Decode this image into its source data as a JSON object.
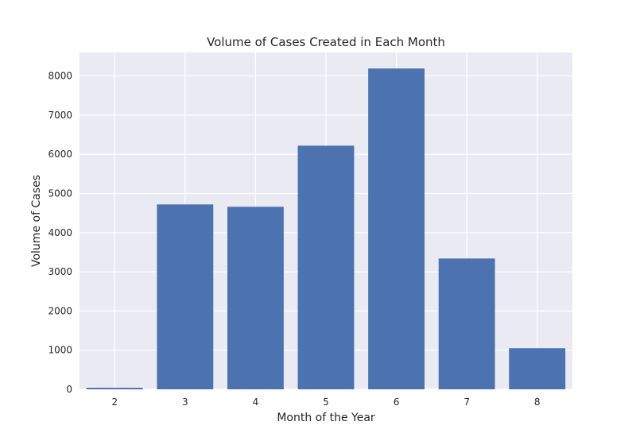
{
  "chart_data": {
    "type": "bar",
    "title": "Volume of Cases Created in Each Month",
    "xlabel": "Month of the Year",
    "ylabel": "Volume of Cases",
    "categories": [
      "2",
      "3",
      "4",
      "5",
      "6",
      "7",
      "8"
    ],
    "values": [
      40,
      4720,
      4660,
      6220,
      8190,
      3340,
      1050
    ],
    "x_ticks": [
      2,
      3,
      4,
      5,
      6,
      7,
      8
    ],
    "y_ticks": [
      0,
      1000,
      2000,
      3000,
      4000,
      5000,
      6000,
      7000,
      8000
    ],
    "xlim": [
      1.5,
      8.5
    ],
    "ylim": [
      0,
      8600
    ],
    "grid": true,
    "legend": "none",
    "colors": {
      "bar": "#4c72b0",
      "plot_background": "#eaeaf2",
      "grid": "#ffffff",
      "text": "#262626"
    }
  }
}
